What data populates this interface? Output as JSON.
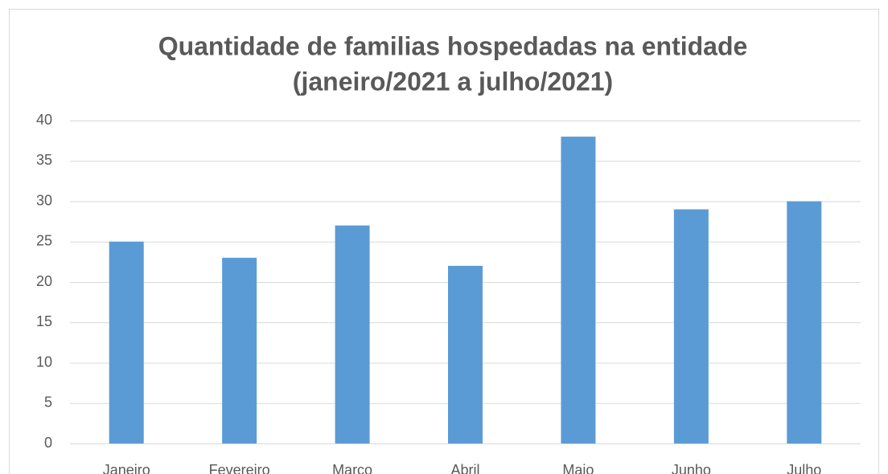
{
  "chart_data": {
    "type": "bar",
    "title": [
      "Quantidade de familias hospedadas na entidade",
      "(janeiro/2021 a julho/2021)"
    ],
    "categories": [
      "Janeiro",
      "Fevereiro",
      "Março",
      "Abril",
      "Maio",
      "Junho",
      "Julho"
    ],
    "values": [
      25,
      23,
      27,
      22,
      38,
      29,
      30
    ],
    "color": "#5b9bd5",
    "ylim": [
      0,
      40
    ],
    "yticks": [
      0,
      5,
      10,
      15,
      20,
      25,
      30,
      35,
      40
    ],
    "grid": true
  }
}
